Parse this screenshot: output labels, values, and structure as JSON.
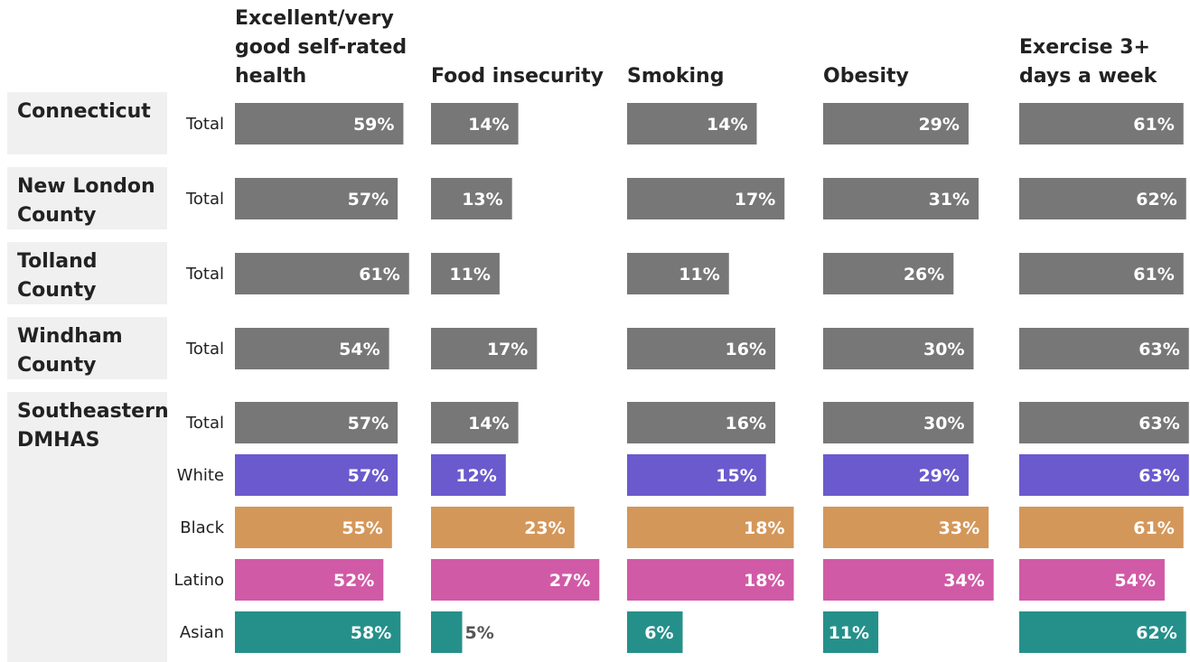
{
  "chart_data": {
    "type": "bar",
    "orientation": "horizontal",
    "value_suffix": "%",
    "metrics": [
      [
        "Excellent/very",
        "good self-rated",
        "health"
      ],
      [
        "Food insecurity"
      ],
      [
        "Smoking"
      ],
      [
        "Obesity"
      ],
      [
        "Exercise 3+",
        "days a week"
      ]
    ],
    "groups": [
      {
        "name": [
          "Connecticut"
        ],
        "rows": [
          {
            "label": "Total",
            "color": "#777777",
            "values": [
              59,
              14,
              14,
              29,
              61
            ]
          }
        ]
      },
      {
        "name": [
          "New London",
          "County"
        ],
        "rows": [
          {
            "label": "Total",
            "color": "#777777",
            "values": [
              57,
              13,
              17,
              31,
              62
            ]
          }
        ]
      },
      {
        "name": [
          "Tolland",
          "County"
        ],
        "rows": [
          {
            "label": "Total",
            "color": "#777777",
            "values": [
              61,
              11,
              11,
              26,
              61
            ]
          }
        ]
      },
      {
        "name": [
          "Windham",
          "County"
        ],
        "rows": [
          {
            "label": "Total",
            "color": "#777777",
            "values": [
              54,
              17,
              16,
              30,
              63
            ]
          }
        ]
      },
      {
        "name": [
          "Southeastern",
          "DMHAS"
        ],
        "rows": [
          {
            "label": "Total",
            "color": "#777777",
            "values": [
              57,
              14,
              16,
              30,
              63
            ]
          },
          {
            "label": "White",
            "color": "#6a5acd",
            "values": [
              57,
              12,
              15,
              29,
              63
            ]
          },
          {
            "label": "Black",
            "color": "#d4975a",
            "values": [
              55,
              23,
              18,
              33,
              61
            ]
          },
          {
            "label": "Latino",
            "color": "#d15aa6",
            "values": [
              52,
              27,
              18,
              34,
              54
            ]
          },
          {
            "label": "Asian",
            "color": "#25908a",
            "values": [
              58,
              5,
              6,
              11,
              62
            ]
          }
        ]
      }
    ],
    "colors": {
      "group_background": "#f0f0f0",
      "label_inside": "#ffffff",
      "label_outside": "#555555"
    }
  }
}
